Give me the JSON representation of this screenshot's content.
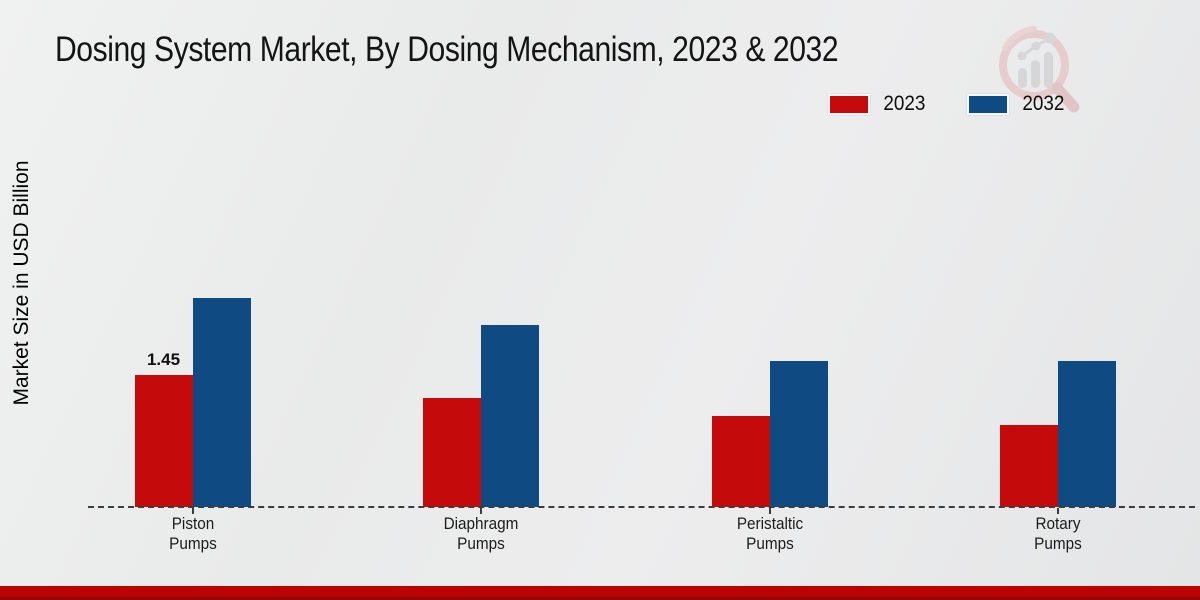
{
  "title": "Dosing System Market, By Dosing Mechanism, 2023 & 2032",
  "ylabel": "Market Size in USD Billion",
  "legend": [
    {
      "label": "2023",
      "color": "#c40a0a"
    },
    {
      "label": "2032",
      "color": "#0f4b82"
    }
  ],
  "colors": {
    "series_2023": "#c40a0a",
    "series_2032": "#0f4b82",
    "footer_strip": "#bb0303",
    "axis": "#3c3c3c",
    "background": "#e9eaea"
  },
  "watermark": {
    "name": "magnifier-growth-chart-logo"
  },
  "chart_data": {
    "type": "bar",
    "title": "Dosing System Market, By Dosing Mechanism, 2023 & 2032",
    "xlabel": "",
    "ylabel": "Market Size in USD Billion",
    "categories": [
      "Piston Pumps",
      "Diaphragm Pumps",
      "Peristaltic Pumps",
      "Rotary Pumps"
    ],
    "categories_lines": [
      [
        "Piston",
        "Pumps"
      ],
      [
        "Diaphragm",
        "Pumps"
      ],
      [
        "Peristaltic",
        "Pumps"
      ],
      [
        "Rotary",
        "Pumps"
      ]
    ],
    "series": [
      {
        "name": "2023",
        "color": "#c40a0a",
        "values": [
          1.45,
          1.2,
          1.0,
          0.9
        ]
      },
      {
        "name": "2032",
        "color": "#0f4b82",
        "values": [
          2.3,
          2.0,
          1.6,
          1.6
        ]
      }
    ],
    "ylim": [
      0,
      2.55
    ],
    "grid": false,
    "axis_style": "dashed-baseline-only",
    "legend_position": "top-right",
    "annotations": [
      {
        "series_index": 0,
        "category_index": 0,
        "text": "1.45"
      }
    ]
  }
}
